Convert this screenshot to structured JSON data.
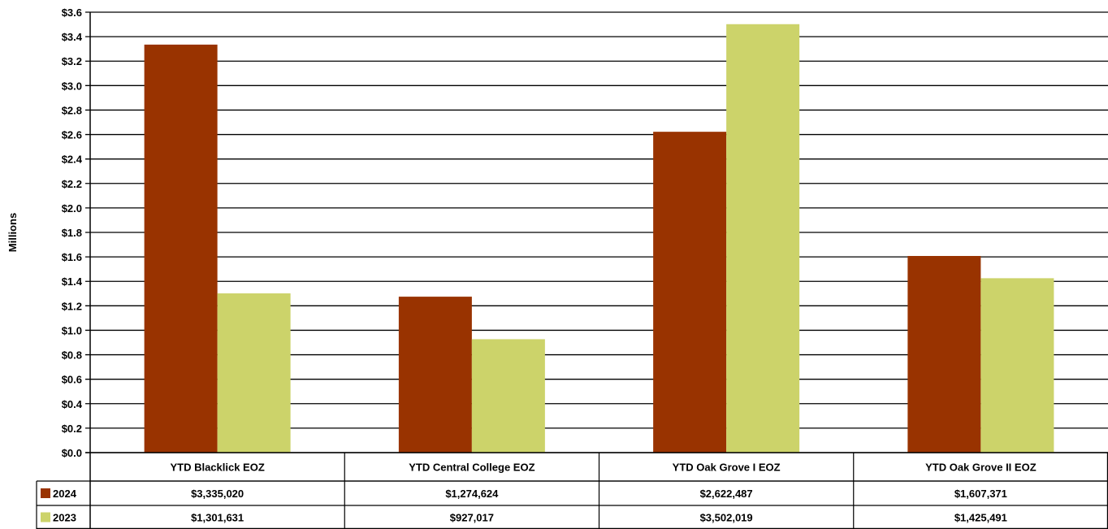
{
  "chart_data": {
    "type": "bar",
    "ylabel": "Millions",
    "ylim": [
      0,
      3.6
    ],
    "ytick_step": 0.2,
    "y_ticks": [
      "$3.6",
      "$3.4",
      "$3.2",
      "$3.0",
      "$2.8",
      "$2.6",
      "$2.4",
      "$2.2",
      "$2.0",
      "$1.8",
      "$1.6",
      "$1.4",
      "$1.2",
      "$1.0",
      "$0.8",
      "$0.6",
      "$0.4",
      "$0.2",
      "$0.0"
    ],
    "grid": true,
    "categories": [
      "YTD Blacklick EOZ",
      "YTD Central College EOZ",
      "YTD Oak Grove I EOZ",
      "YTD Oak Grove II EOZ"
    ],
    "series": [
      {
        "name": "2024",
        "color": "#993300",
        "values": [
          3335020,
          1274624,
          2622487,
          1607371
        ],
        "labels": [
          "$3,335,020",
          "$1,274,624",
          "$2,622,487",
          "$1,607,371"
        ]
      },
      {
        "name": "2023",
        "color": "#CCD36A",
        "values": [
          1301631,
          927017,
          3502019,
          1425491
        ],
        "labels": [
          "$1,301,631",
          "$927,017",
          "$3,502,019",
          "$1,425,491"
        ]
      }
    ]
  }
}
